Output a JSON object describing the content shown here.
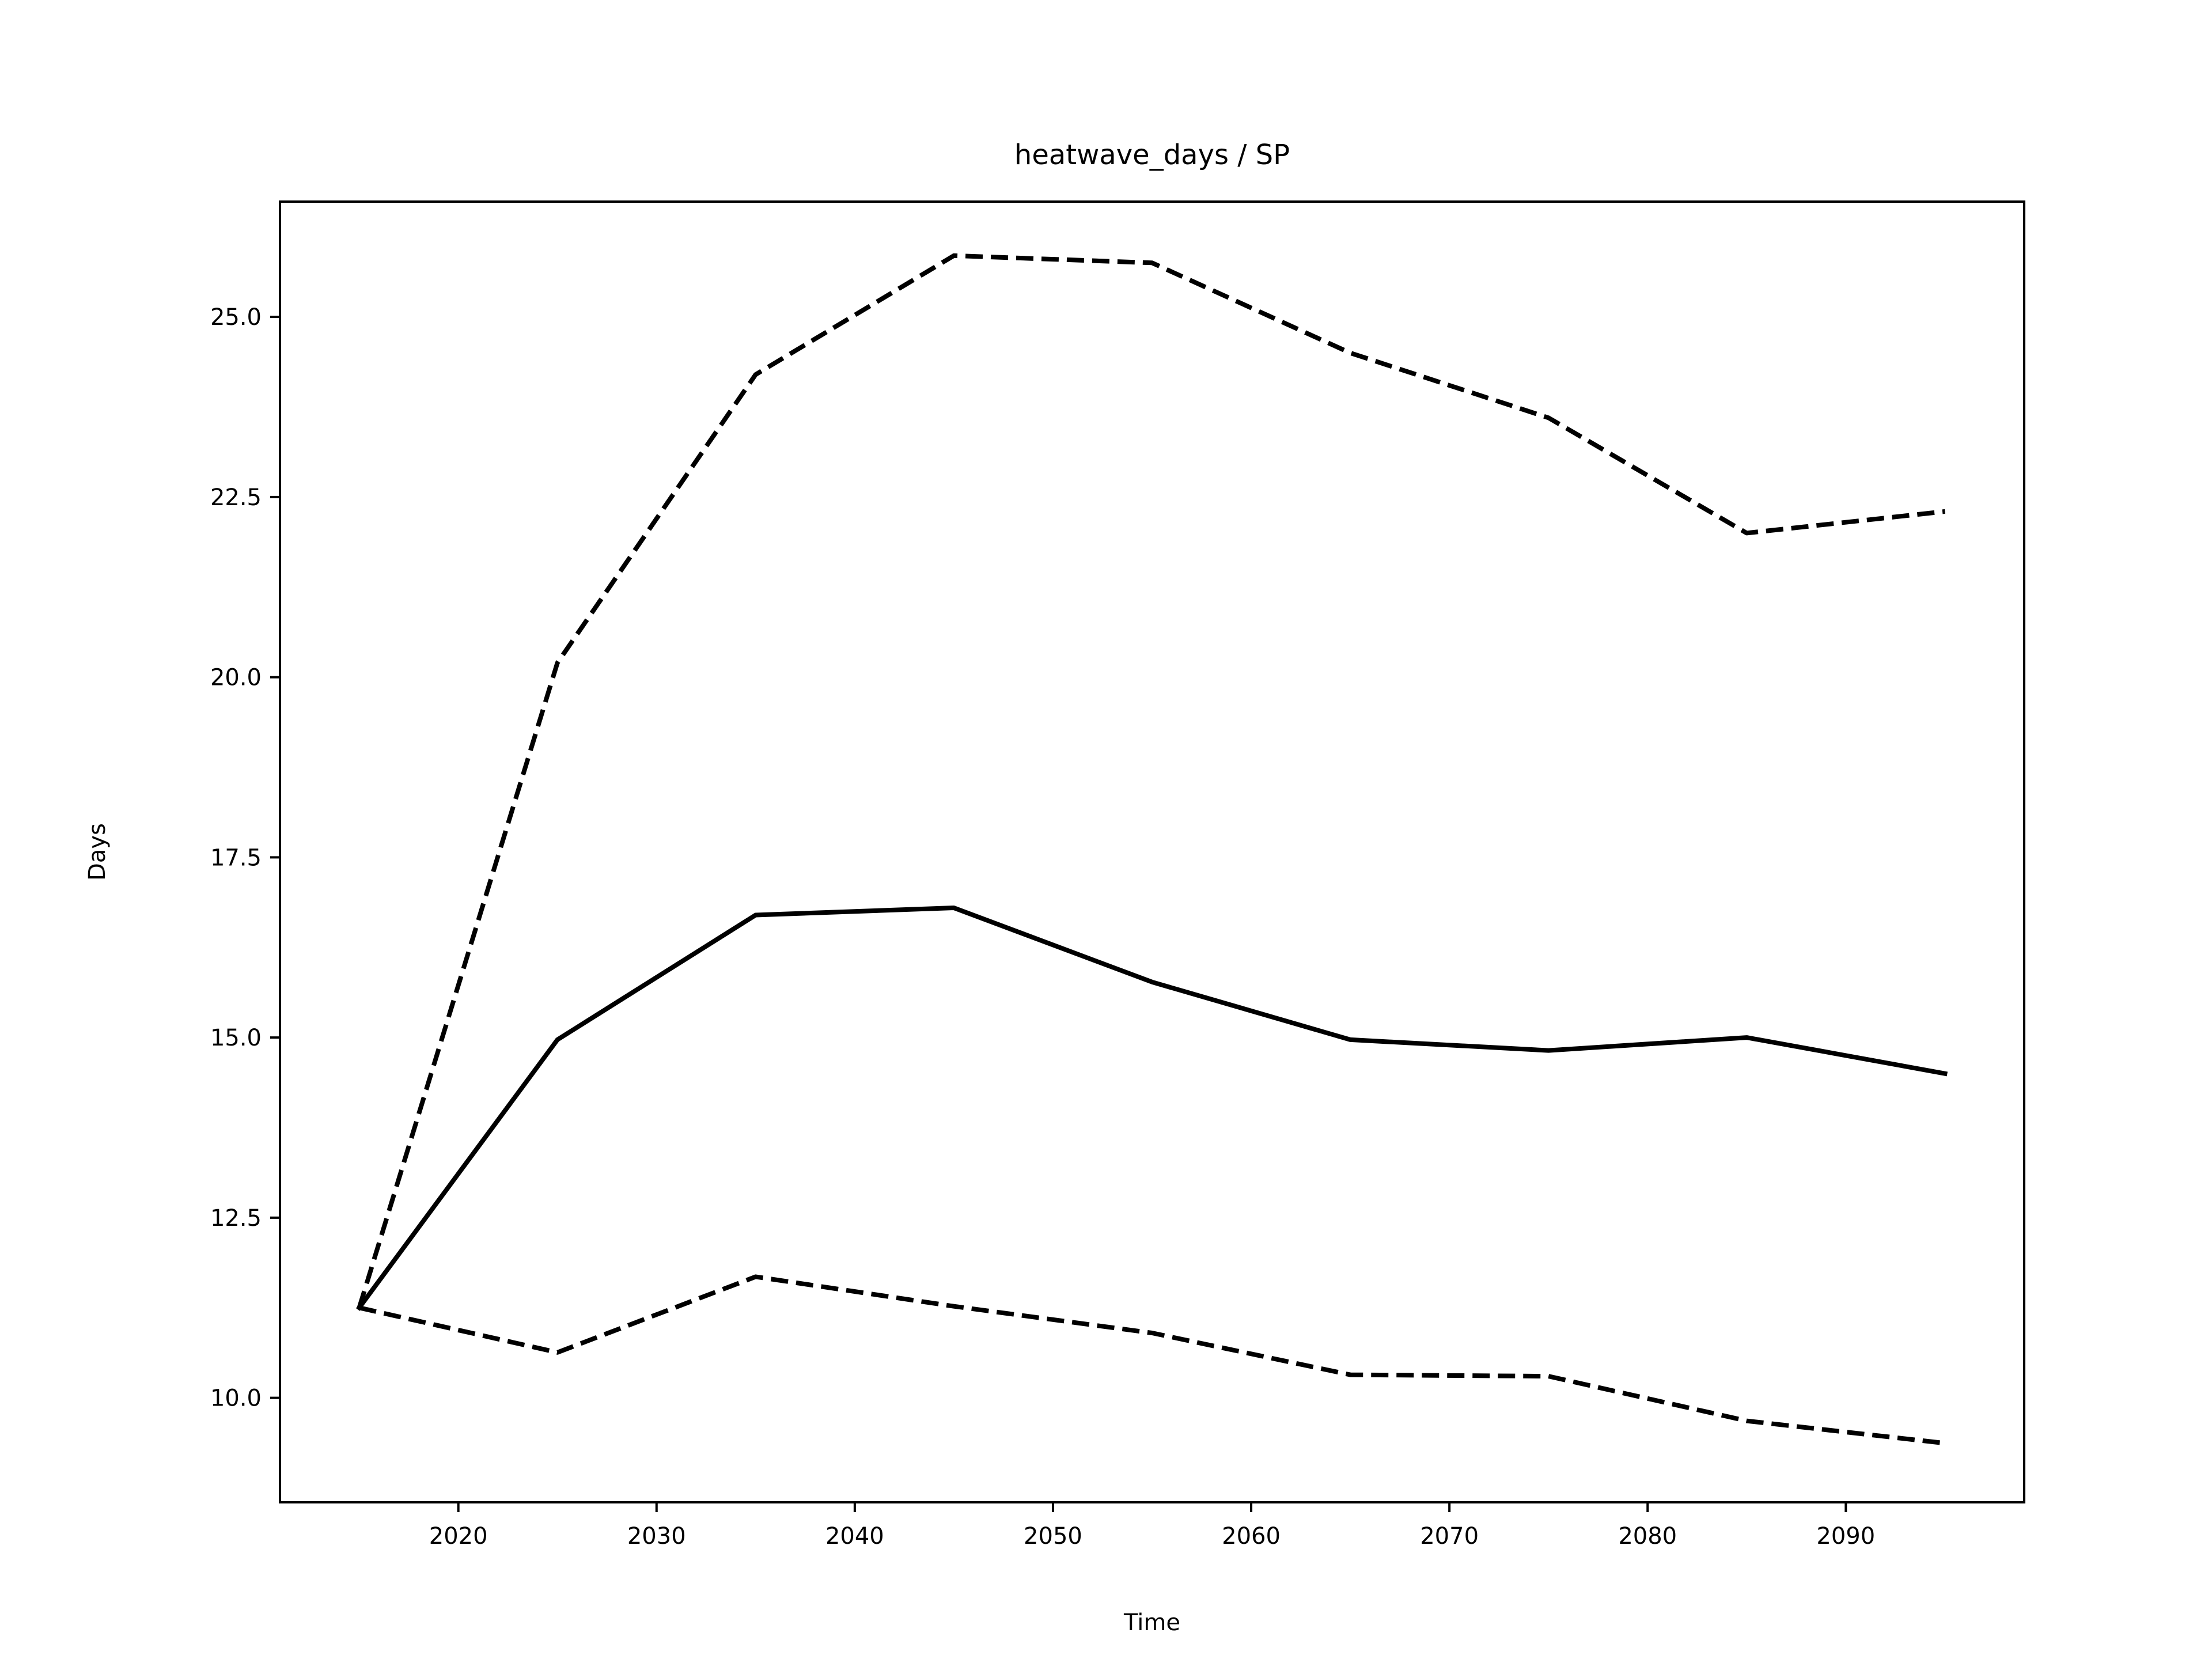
{
  "chart_data": {
    "type": "line",
    "title": "heatwave_days / SP",
    "xlabel": "Time",
    "ylabel": "Days",
    "xlim": [
      2011.0,
      2099.0
    ],
    "ylim": [
      8.55,
      26.6
    ],
    "x_ticks": [
      2020,
      2030,
      2040,
      2050,
      2060,
      2070,
      2080,
      2090
    ],
    "y_ticks": [
      10.0,
      12.5,
      15.0,
      17.5,
      20.0,
      22.5,
      25.0
    ],
    "x_tick_labels": [
      "2020",
      "2030",
      "2040",
      "2050",
      "2060",
      "2070",
      "2080",
      "2090"
    ],
    "y_tick_labels": [
      "10.0",
      "12.5",
      "15.0",
      "17.5",
      "20.0",
      "22.5",
      "25.0"
    ],
    "grid": false,
    "legend": false,
    "x": [
      2015,
      2025,
      2035,
      2045,
      2055,
      2065,
      2075,
      2085,
      2095
    ],
    "series": [
      {
        "style": "dashed",
        "color": "#000000",
        "values": [
          11.25,
          20.2,
          24.2,
          25.85,
          25.75,
          24.5,
          23.6,
          22.0,
          22.3
        ]
      },
      {
        "style": "solid",
        "color": "#000000",
        "values": [
          11.25,
          14.97,
          16.7,
          16.8,
          15.77,
          14.97,
          14.82,
          15.0,
          14.5
        ]
      },
      {
        "style": "dashed",
        "color": "#000000",
        "values": [
          11.25,
          10.63,
          11.68,
          11.27,
          10.9,
          10.32,
          10.3,
          9.68,
          9.37
        ]
      }
    ]
  }
}
